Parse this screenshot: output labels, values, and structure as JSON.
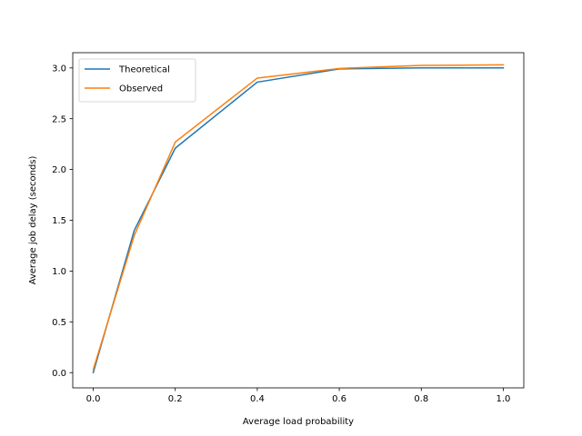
{
  "chart_data": {
    "type": "line",
    "title": "",
    "xlabel": "Average load probability",
    "ylabel": "Average job delay (seconds)",
    "xlim": [
      -0.05,
      1.05
    ],
    "ylim": [
      -0.15,
      3.15
    ],
    "xticks": [
      0.0,
      0.2,
      0.4,
      0.6,
      0.8,
      1.0
    ],
    "xtick_labels": [
      "0.0",
      "0.2",
      "0.4",
      "0.6",
      "0.8",
      "1.0"
    ],
    "yticks": [
      0.0,
      0.5,
      1.0,
      1.5,
      2.0,
      2.5,
      3.0
    ],
    "ytick_labels": [
      "0.0",
      "0.5",
      "1.0",
      "1.5",
      "2.0",
      "2.5",
      "3.0"
    ],
    "grid": false,
    "legend_position": "top-left",
    "x": [
      0.0,
      0.1,
      0.2,
      0.4,
      0.6,
      0.8,
      1.0
    ],
    "series": [
      {
        "name": "Theoretical",
        "color": "#1f77b4",
        "values": [
          0.0,
          1.4,
          2.21,
          2.86,
          2.99,
          3.0,
          3.0
        ]
      },
      {
        "name": "Observed",
        "color": "#ff7f0e",
        "values": [
          0.03,
          1.35,
          2.27,
          2.9,
          2.995,
          3.025,
          3.03
        ]
      }
    ]
  }
}
